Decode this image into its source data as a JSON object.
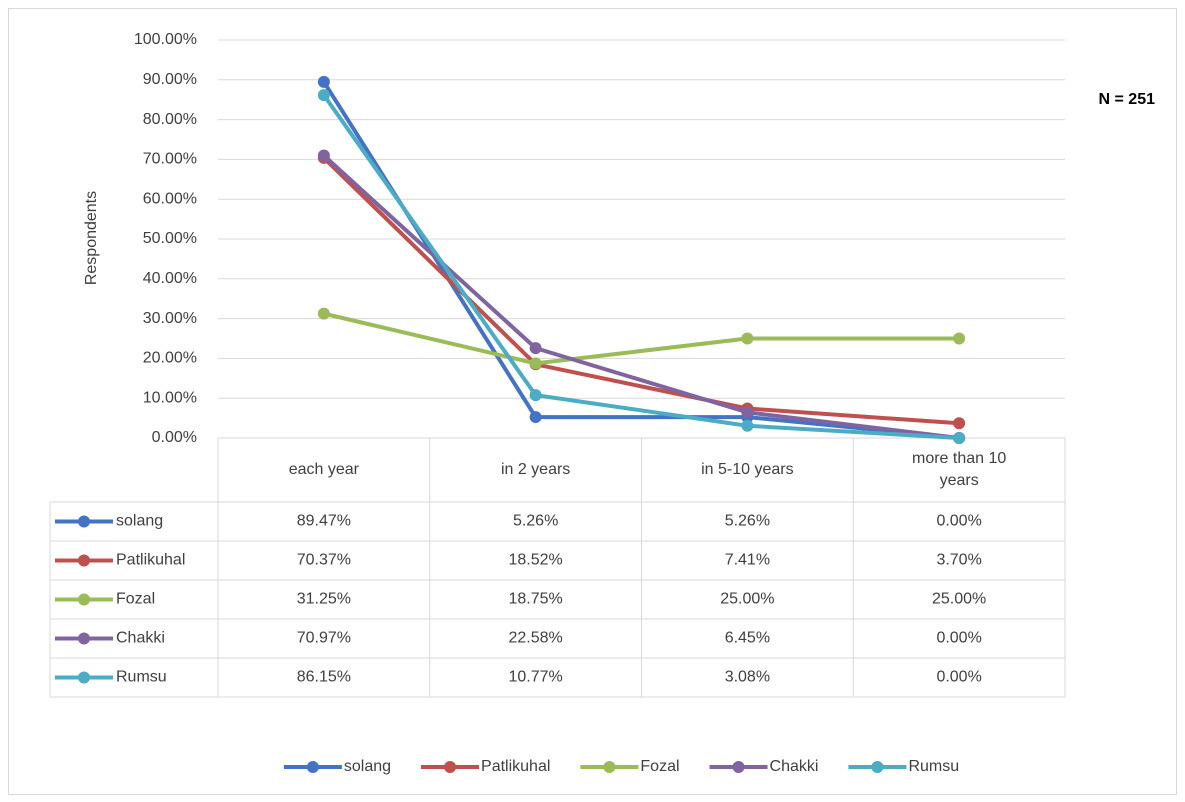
{
  "chart_data": {
    "type": "line",
    "y_label": "Respondents",
    "annotation": "N = 251",
    "categories": [
      "each year",
      "in 2 years",
      "in 5-10 years",
      "more than 10 years"
    ],
    "ylim": [
      0,
      100
    ],
    "yticks": [
      {
        "value": 0,
        "label": "0.00%"
      },
      {
        "value": 10,
        "label": "10.00%"
      },
      {
        "value": 20,
        "label": "20.00%"
      },
      {
        "value": 30,
        "label": "30.00%"
      },
      {
        "value": 40,
        "label": "40.00%"
      },
      {
        "value": 50,
        "label": "50.00%"
      },
      {
        "value": 60,
        "label": "60.00%"
      },
      {
        "value": 70,
        "label": "70.00%"
      },
      {
        "value": 80,
        "label": "80.00%"
      },
      {
        "value": 90,
        "label": "90.00%"
      },
      {
        "value": 100,
        "label": "100.00%"
      }
    ],
    "grid": true,
    "legend": "bottom",
    "series": [
      {
        "name": "solang",
        "color": "#4472c4",
        "values": [
          89.47,
          5.26,
          5.26,
          0
        ],
        "value_labels": [
          "89.47%",
          "5.26%",
          "5.26%",
          "0.00%"
        ]
      },
      {
        "name": "Patlikuhal",
        "color": "#c0504d",
        "values": [
          70.37,
          18.52,
          7.41,
          3.7
        ],
        "value_labels": [
          "70.37%",
          "18.52%",
          "7.41%",
          "3.70%"
        ]
      },
      {
        "name": "Fozal",
        "color": "#9bbb59",
        "values": [
          31.25,
          18.75,
          25.0,
          25.0
        ],
        "value_labels": [
          "31.25%",
          "18.75%",
          "25.00%",
          "25.00%"
        ]
      },
      {
        "name": "Chakki",
        "color": "#8064a2",
        "values": [
          70.97,
          22.58,
          6.45,
          0
        ],
        "value_labels": [
          "70.97%",
          "22.58%",
          "6.45%",
          "0.00%"
        ]
      },
      {
        "name": "Rumsu",
        "color": "#4bacc6",
        "values": [
          86.15,
          10.77,
          3.08,
          0
        ],
        "value_labels": [
          "86.15%",
          "10.77%",
          "3.08%",
          "0.00%"
        ]
      }
    ]
  }
}
